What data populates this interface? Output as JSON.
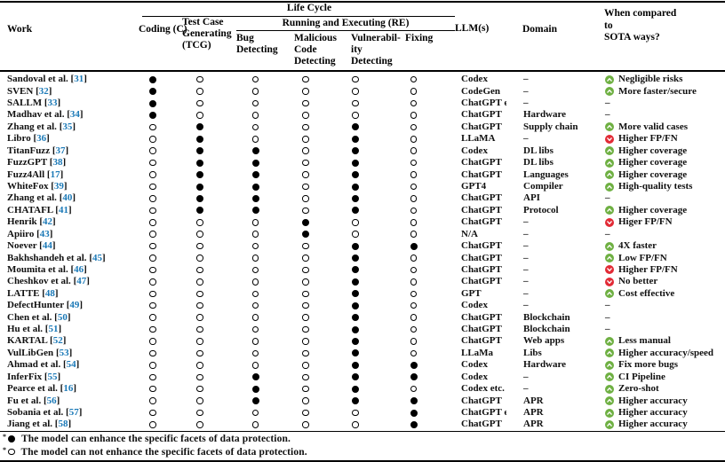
{
  "header": {
    "work": "Work",
    "life_cycle": "Life Cycle",
    "coding": "Coding (C)",
    "tcg_lines": [
      "Test Case",
      "Generating",
      "(TCG)"
    ],
    "re": "Running and Executing (RE)",
    "bug_lines": [
      "Bug",
      "Detecting"
    ],
    "malicious_lines": [
      "Malicious",
      "Code",
      "Detecting"
    ],
    "vulnerability_lines": [
      "Vulnerabil-",
      "ity",
      "Detecting"
    ],
    "fixing": "Fixing",
    "llm": "LLM(s)",
    "domain": "Domain",
    "sota_lines": [
      "When compared",
      "to",
      "SOTA ways?"
    ]
  },
  "format": {
    "cite_open": "[",
    "cite_close": "]",
    "footnote_marker": "*"
  },
  "colors": {
    "cite_blue": "#1b79b7",
    "up_green": "#6fb043",
    "down_red": "#e22b36",
    "rule_black": "#000000"
  },
  "table": {
    "lifecycle_columns": [
      "C",
      "TCG",
      "Bug Detecting",
      "Malicious Code Detecting",
      "Vulnerability Detecting",
      "Fixing"
    ],
    "rows": [
      {
        "work": "Sandoval et al.",
        "cite": "31",
        "lifecycle": [
          1,
          0,
          0,
          0,
          0,
          0
        ],
        "llm": "Codex",
        "domain": "–",
        "sota": {
          "icon": "up",
          "text": "Negligible risks"
        }
      },
      {
        "work": "SVEN",
        "cite": "32",
        "lifecycle": [
          1,
          0,
          0,
          0,
          0,
          0
        ],
        "llm": "CodeGen",
        "domain": "–",
        "sota": {
          "icon": "up",
          "text": "More faster/secure"
        }
      },
      {
        "work": "SALLM",
        "cite": "33",
        "lifecycle": [
          1,
          0,
          0,
          0,
          0,
          0
        ],
        "llm": "ChatGPT etc.",
        "domain": "–",
        "sota": {
          "icon": "",
          "text": "–"
        }
      },
      {
        "work": "Madhav et al.",
        "cite": "34",
        "lifecycle": [
          1,
          0,
          0,
          0,
          0,
          0
        ],
        "llm": "ChatGPT",
        "domain": "Hardware",
        "sota": {
          "icon": "",
          "text": "–"
        }
      },
      {
        "work": "Zhang et al.",
        "cite": "35",
        "lifecycle": [
          0,
          1,
          0,
          0,
          1,
          0
        ],
        "llm": "ChatGPT",
        "domain": "Supply chain",
        "sota": {
          "icon": "up",
          "text": "More valid cases"
        }
      },
      {
        "work": "Libro",
        "cite": "36",
        "lifecycle": [
          0,
          1,
          0,
          0,
          1,
          0
        ],
        "llm": "LLaMA",
        "domain": "–",
        "sota": {
          "icon": "down",
          "text": "Higher FP/FN"
        }
      },
      {
        "work": "TitanFuzz",
        "cite": "37",
        "lifecycle": [
          0,
          1,
          1,
          0,
          1,
          0
        ],
        "llm": "Codex",
        "domain": "DL libs",
        "sota": {
          "icon": "up",
          "text": "Higher coverage"
        }
      },
      {
        "work": "FuzzGPT",
        "cite": "38",
        "lifecycle": [
          0,
          1,
          1,
          0,
          1,
          0
        ],
        "llm": "ChatGPT",
        "domain": "DL libs",
        "sota": {
          "icon": "up",
          "text": "Higher coverage"
        }
      },
      {
        "work": "Fuzz4All",
        "cite": "17",
        "lifecycle": [
          0,
          1,
          1,
          0,
          1,
          0
        ],
        "llm": "ChatGPT",
        "domain": "Languages",
        "sota": {
          "icon": "up",
          "text": "Higher coverage"
        }
      },
      {
        "work": "WhiteFox",
        "cite": "39",
        "lifecycle": [
          0,
          1,
          1,
          0,
          1,
          0
        ],
        "llm": "GPT4",
        "domain": "Compiler",
        "sota": {
          "icon": "up",
          "text": "High-quality tests"
        }
      },
      {
        "work": "Zhang et al.",
        "cite": "40",
        "lifecycle": [
          0,
          1,
          1,
          0,
          1,
          0
        ],
        "llm": "ChatGPT",
        "domain": "API",
        "sota": {
          "icon": "",
          "text": "–"
        }
      },
      {
        "work": "CHATAFL",
        "cite": "41",
        "lifecycle": [
          0,
          1,
          1,
          0,
          1,
          0
        ],
        "llm": "ChatGPT",
        "domain": "Protocol",
        "sota": {
          "icon": "up",
          "text": "Higher coverage"
        }
      },
      {
        "work": "Henrik",
        "cite": "42",
        "lifecycle": [
          0,
          0,
          0,
          1,
          0,
          0
        ],
        "llm": "ChatGPT",
        "domain": "–",
        "sota": {
          "icon": "down",
          "text": "Higer FP/FN"
        }
      },
      {
        "work": "Apiiro",
        "cite": "43",
        "lifecycle": [
          0,
          0,
          0,
          1,
          0,
          0
        ],
        "llm": "N/A",
        "domain": "–",
        "sota": {
          "icon": "",
          "text": "–"
        }
      },
      {
        "work": "Noever",
        "cite": "44",
        "lifecycle": [
          0,
          0,
          0,
          0,
          1,
          1
        ],
        "llm": "ChatGPT",
        "domain": "–",
        "sota": {
          "icon": "up",
          "text": "4X faster"
        }
      },
      {
        "work": "Bakhshandeh et al.",
        "cite": "45",
        "lifecycle": [
          0,
          0,
          0,
          0,
          1,
          0
        ],
        "llm": "ChatGPT",
        "domain": "–",
        "sota": {
          "icon": "up",
          "text": "Low FP/FN"
        }
      },
      {
        "work": "Moumita et al.",
        "cite": "46",
        "lifecycle": [
          0,
          0,
          0,
          0,
          1,
          0
        ],
        "llm": "ChatGPT",
        "domain": "–",
        "sota": {
          "icon": "down",
          "text": "Higher FP/FN"
        }
      },
      {
        "work": "Cheshkov et al.",
        "cite": "47",
        "lifecycle": [
          0,
          0,
          0,
          0,
          1,
          0
        ],
        "llm": "ChatGPT",
        "domain": "–",
        "sota": {
          "icon": "down",
          "text": "No better"
        }
      },
      {
        "work": "LATTE",
        "cite": "48",
        "lifecycle": [
          0,
          0,
          0,
          0,
          1,
          0
        ],
        "llm": "GPT",
        "domain": "–",
        "sota": {
          "icon": "up",
          "text": "Cost effective"
        }
      },
      {
        "work": "DefectHunter",
        "cite": "49",
        "lifecycle": [
          0,
          0,
          0,
          0,
          1,
          0
        ],
        "llm": "Codex",
        "domain": "–",
        "sota": {
          "icon": "",
          "text": "–"
        }
      },
      {
        "work": "Chen et al.",
        "cite": "50",
        "lifecycle": [
          0,
          0,
          0,
          0,
          1,
          0
        ],
        "llm": "ChatGPT",
        "domain": "Blockchain",
        "sota": {
          "icon": "",
          "text": "–"
        }
      },
      {
        "work": "Hu et al.",
        "cite": "51",
        "lifecycle": [
          0,
          0,
          0,
          0,
          1,
          0
        ],
        "llm": "ChatGPT",
        "domain": "Blockchain",
        "sota": {
          "icon": "",
          "text": "–"
        }
      },
      {
        "work": "KARTAL",
        "cite": "52",
        "lifecycle": [
          0,
          0,
          0,
          0,
          1,
          0
        ],
        "llm": "ChatGPT",
        "domain": "Web apps",
        "sota": {
          "icon": "up",
          "text": "Less manual"
        }
      },
      {
        "work": "VulLibGen",
        "cite": "53",
        "lifecycle": [
          0,
          0,
          0,
          0,
          1,
          0
        ],
        "llm": "LLaMa",
        "domain": "Libs",
        "sota": {
          "icon": "up",
          "text": "Higher accuracy/speed"
        }
      },
      {
        "work": "Ahmad et al.",
        "cite": "54",
        "lifecycle": [
          0,
          0,
          0,
          0,
          1,
          1
        ],
        "llm": "Codex",
        "domain": "Hardware",
        "sota": {
          "icon": "up",
          "text": "Fix more bugs"
        }
      },
      {
        "work": "InferFix",
        "cite": "55",
        "lifecycle": [
          0,
          0,
          1,
          0,
          1,
          1
        ],
        "llm": "Codex",
        "domain": "–",
        "sota": {
          "icon": "up",
          "text": "CI Pipeline"
        }
      },
      {
        "work": "Pearce et al.",
        "cite": "16",
        "lifecycle": [
          0,
          0,
          1,
          0,
          1,
          0
        ],
        "llm": "Codex etc.",
        "domain": "–",
        "sota": {
          "icon": "up",
          "text": "Zero-shot"
        }
      },
      {
        "work": "Fu et al.",
        "cite": "56",
        "lifecycle": [
          0,
          0,
          1,
          0,
          1,
          1
        ],
        "llm": "ChatGPT",
        "domain": "APR",
        "sota": {
          "icon": "up",
          "text": "Higher accuracy"
        }
      },
      {
        "work": "Sobania et al.",
        "cite": "57",
        "lifecycle": [
          0,
          0,
          0,
          0,
          0,
          1
        ],
        "llm": "ChatGPT etc.",
        "domain": "APR",
        "sota": {
          "icon": "up",
          "text": "Higher accuracy"
        }
      },
      {
        "work": "Jiang et al.",
        "cite": "58",
        "lifecycle": [
          0,
          0,
          0,
          0,
          0,
          1
        ],
        "llm": "ChatGPT",
        "domain": "APR",
        "sota": {
          "icon": "up",
          "text": "Higher accuracy"
        }
      }
    ]
  },
  "footnotes": [
    {
      "circle": "filled",
      "text": "The model can enhance the specific facets of data protection."
    },
    {
      "circle": "empty",
      "text": "The model can not enhance the specific facets of data protection."
    }
  ]
}
